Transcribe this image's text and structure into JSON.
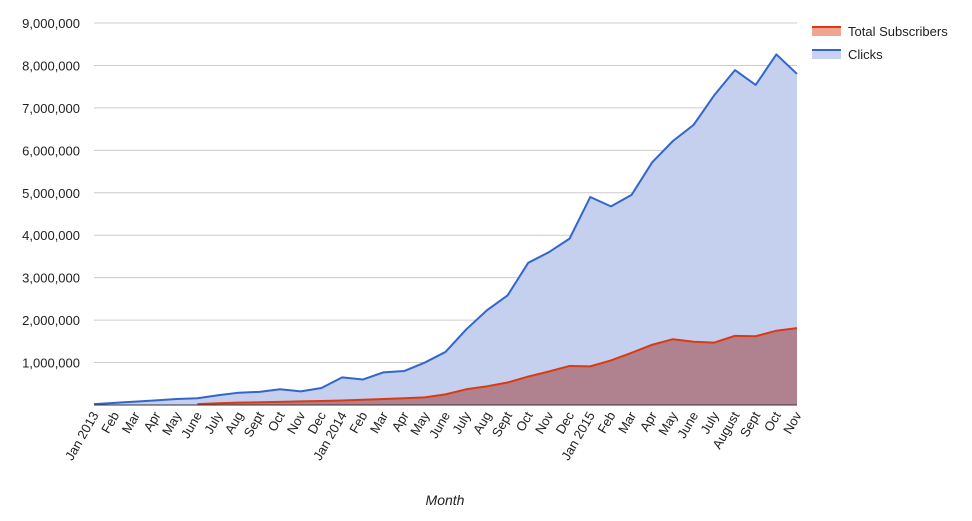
{
  "chart_data": {
    "type": "area",
    "xlabel": "Month",
    "ylabel": "",
    "ylim": [
      0,
      9000000
    ],
    "yticks": [
      1000000,
      2000000,
      3000000,
      4000000,
      5000000,
      6000000,
      7000000,
      8000000,
      9000000
    ],
    "ytick_labels": [
      "1,000,000",
      "2,000,000",
      "3,000,000",
      "4,000,000",
      "5,000,000",
      "6,000,000",
      "7,000,000",
      "8,000,000",
      "9,000,000"
    ],
    "grid": true,
    "legend_position": "top-right",
    "categories": [
      "Jan 2013",
      "Feb",
      "Mar",
      "Apr",
      "May",
      "June",
      "July",
      "Aug",
      "Sept",
      "Oct",
      "Nov",
      "Dec",
      "Jan 2014",
      "Feb",
      "Mar",
      "Apr",
      "May",
      "June",
      "July",
      "Aug",
      "Sept",
      "Oct",
      "Nov",
      "Dec",
      "Jan 2015",
      "Feb",
      "Mar",
      "Apr",
      "May",
      "June",
      "July",
      "August",
      "Sept",
      "Oct",
      "Nov"
    ],
    "series": [
      {
        "name": "Total Subscribers",
        "color": "#dc3912",
        "fill": "#b0828f",
        "values": [
          null,
          null,
          null,
          null,
          null,
          20000,
          40000,
          55000,
          65000,
          75000,
          85000,
          95000,
          105000,
          125000,
          140000,
          160000,
          180000,
          250000,
          370000,
          440000,
          530000,
          670000,
          790000,
          920000,
          910000,
          1050000,
          1230000,
          1420000,
          1550000,
          1490000,
          1470000,
          1630000,
          1620000,
          1750000,
          1810000
        ]
      },
      {
        "name": "Clicks",
        "color": "#3366cc",
        "fill": "#c5d0ef",
        "values": [
          20000,
          50000,
          80000,
          110000,
          140000,
          160000,
          230000,
          290000,
          310000,
          370000,
          320000,
          400000,
          650000,
          600000,
          770000,
          800000,
          1000000,
          1250000,
          1780000,
          2230000,
          2580000,
          3350000,
          3600000,
          3920000,
          4900000,
          4680000,
          4950000,
          5720000,
          6220000,
          6600000,
          7300000,
          7890000,
          7540000,
          8260000,
          7800000
        ]
      }
    ]
  }
}
